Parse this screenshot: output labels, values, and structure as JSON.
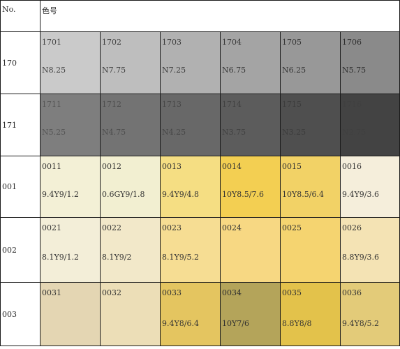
{
  "header": {
    "no_label": "No.",
    "title": "色号"
  },
  "rows": [
    {
      "label": "170",
      "cells": [
        {
          "code": "1701",
          "value": "N8.25",
          "bg": "#cacaca",
          "fg": "#444444"
        },
        {
          "code": "1702",
          "value": "N7.75",
          "bg": "#bebebe",
          "fg": "#404040"
        },
        {
          "code": "1703",
          "value": "N7.25",
          "bg": "#b1b1b1",
          "fg": "#3c3c3c"
        },
        {
          "code": "1704",
          "value": "N6.75",
          "bg": "#a4a4a4",
          "fg": "#383838"
        },
        {
          "code": "1705",
          "value": "N6.25",
          "bg": "#989898",
          "fg": "#353535"
        },
        {
          "code": "1706",
          "value": "N5.75",
          "bg": "#8a8a8a",
          "fg": "#303030"
        }
      ]
    },
    {
      "label": "171",
      "cells": [
        {
          "code": "1711",
          "value": "N5.25",
          "bg": "#7e7e7e",
          "fg": "#555555"
        },
        {
          "code": "1712",
          "value": "N4.75",
          "bg": "#737373",
          "fg": "#4e4e4e"
        },
        {
          "code": "1713",
          "value": "N4.25",
          "bg": "#686868",
          "fg": "#474747"
        },
        {
          "code": "1714",
          "value": "N3.75",
          "bg": "#5c5c5c",
          "fg": "#414141"
        },
        {
          "code": "1715",
          "value": "N3.25",
          "bg": "#4f4f4f",
          "fg": "#3c3c3c"
        },
        {
          "code": "1716",
          "value": "N2.75",
          "bg": "#434343",
          "fg": "#404040"
        }
      ]
    },
    {
      "label": "001",
      "cells": [
        {
          "code": "0011",
          "value": "9.4Y9/1.2",
          "bg": "#f3f0d6",
          "fg": "#333333"
        },
        {
          "code": "0012",
          "value": "0.6GY9/1.8",
          "bg": "#f2efd1",
          "fg": "#333333"
        },
        {
          "code": "0013",
          "value": "9.4Y9/4.8",
          "bg": "#f5de83",
          "fg": "#333333"
        },
        {
          "code": "0014",
          "value": "10Y8.5/7.6",
          "bg": "#f3cf52",
          "fg": "#333333"
        },
        {
          "code": "0015",
          "value": "10Y8.5/6.4",
          "bg": "#f2d266",
          "fg": "#333333"
        },
        {
          "code": "0016",
          "value": "9.4Y9/3.6",
          "bg": "#f5eedb",
          "fg": "#333333"
        }
      ]
    },
    {
      "label": "002",
      "cells": [
        {
          "code": "0021",
          "value": "8.1Y9/1.2",
          "bg": "#f3eed8",
          "fg": "#333333"
        },
        {
          "code": "0022",
          "value": "8.1Y9/2",
          "bg": "#f2e8c9",
          "fg": "#333333"
        },
        {
          "code": "0023",
          "value": "8.1Y9/5.2",
          "bg": "#f6dd93",
          "fg": "#333333"
        },
        {
          "code": "0024",
          "value": "",
          "bg": "#f7d883",
          "fg": "#333333"
        },
        {
          "code": "0025",
          "value": "",
          "bg": "#f5d470",
          "fg": "#333333"
        },
        {
          "code": "0026",
          "value": "8.8Y9/3.6",
          "bg": "#f4e3b4",
          "fg": "#333333"
        }
      ]
    },
    {
      "label": "003",
      "cells": [
        {
          "code": "0031",
          "value": "",
          "bg": "#e4d6b3",
          "fg": "#333333"
        },
        {
          "code": "0032",
          "value": "",
          "bg": "#ecdeb7",
          "fg": "#333333"
        },
        {
          "code": "0033",
          "value": "9.4Y8/6.4",
          "bg": "#e4c560",
          "fg": "#333333"
        },
        {
          "code": "0034",
          "value": "10Y7/6",
          "bg": "#b4a45a",
          "fg": "#2e2e2e"
        },
        {
          "code": "0035",
          "value": "8.8Y8/8",
          "bg": "#e3c24b",
          "fg": "#333333"
        },
        {
          "code": "0036",
          "value": "9.4Y8/5.2",
          "bg": "#e3cb79",
          "fg": "#333333"
        }
      ]
    }
  ]
}
